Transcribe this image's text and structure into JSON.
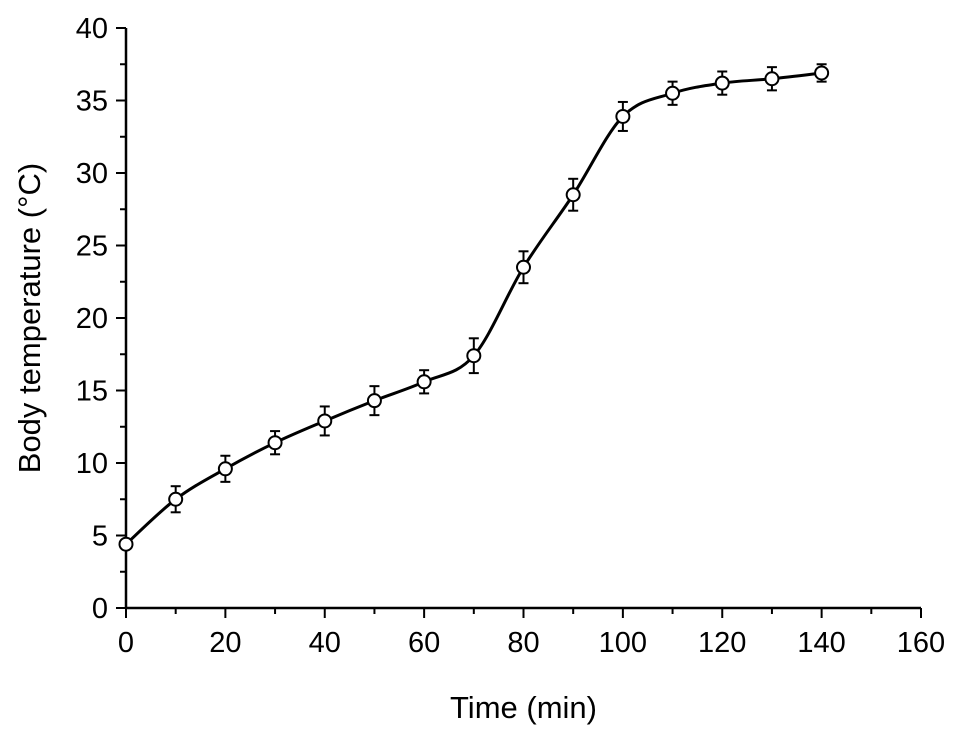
{
  "chart_data": {
    "type": "scatter",
    "xlabel": "Time (min)",
    "ylabel": "Body temperature (°C)",
    "xlim": [
      0,
      160
    ],
    "ylim": [
      0,
      40
    ],
    "xticks": [
      0,
      20,
      40,
      60,
      80,
      100,
      120,
      140,
      160
    ],
    "yticks": [
      0,
      5,
      10,
      15,
      20,
      25,
      30,
      35,
      40
    ],
    "grid": false,
    "series": [
      {
        "x": [
          0,
          10,
          20,
          30,
          40,
          50,
          60,
          70,
          80,
          90,
          100,
          110,
          120,
          130,
          140
        ],
        "y": [
          4.4,
          7.5,
          9.6,
          11.4,
          12.9,
          14.3,
          15.6,
          17.4,
          23.5,
          28.5,
          33.9,
          35.5,
          36.2,
          36.5,
          36.9
        ],
        "error": [
          0.3,
          0.9,
          0.9,
          0.8,
          1.0,
          1.0,
          0.8,
          1.2,
          1.1,
          1.1,
          1.0,
          0.8,
          0.8,
          0.8,
          0.6
        ],
        "marker": "open-circle",
        "line": "smooth-fit",
        "color": "#000000"
      }
    ]
  }
}
